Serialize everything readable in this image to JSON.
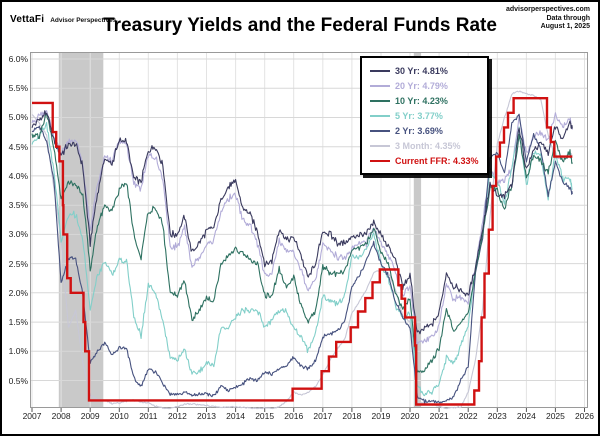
{
  "header": {
    "logo_primary": "VettaFi",
    "logo_secondary": "Advisor Perspectives",
    "source_lines": [
      "advisorperspectives.com",
      "Data through",
      "August 1, 2025"
    ]
  },
  "title": "Treasury Yields and the Federal Funds Rate",
  "chart_data": {
    "type": "line",
    "title": "Treasury Yields and the Federal Funds Rate",
    "xlabel": "",
    "ylabel": "",
    "grid": true,
    "legend_position": "top-right-inside",
    "xlim": [
      2006.93,
      2026.12
    ],
    "ylim": [
      0.03,
      6.12
    ],
    "x_ticks": [
      2007,
      2008,
      2009,
      2010,
      2011,
      2012,
      2013,
      2014,
      2015,
      2016,
      2017,
      2018,
      2019,
      2020,
      2021,
      2022,
      2023,
      2024,
      2025,
      2026
    ],
    "x_tick_labels": [
      "2007",
      "2008",
      "2009",
      "2010",
      "2011",
      "2012",
      "2013",
      "2014",
      "2015",
      "2016",
      "2017",
      "2018",
      "2019",
      "2020",
      "2021",
      "2022",
      "2023",
      "2024",
      "2025",
      "2026"
    ],
    "y_ticks": [
      0.5,
      1.0,
      1.5,
      2.0,
      2.5,
      3.0,
      3.5,
      4.0,
      4.5,
      5.0,
      5.5,
      6.0
    ],
    "y_tick_labels": [
      "0.5%",
      "1.0%",
      "1.5%",
      "2.0%",
      "2.5%",
      "3.0%",
      "3.5%",
      "4.0%",
      "4.5%",
      "5.0%",
      "5.5%",
      "6.0%"
    ],
    "recession_bands": [
      [
        2007.92,
        2009.45
      ],
      [
        2020.13,
        2020.38
      ]
    ],
    "colors": {
      "recession_band": "#c9c9c9",
      "grid_horizontal": "#d8d8d8",
      "grid_vertical": "#e3e3e3",
      "frame": "#9a9a9a"
    },
    "x": [
      2007.0,
      2007.25,
      2007.5,
      2007.75,
      2008.0,
      2008.25,
      2008.5,
      2008.75,
      2009.0,
      2009.25,
      2009.5,
      2009.75,
      2010.0,
      2010.25,
      2010.5,
      2010.75,
      2011.0,
      2011.25,
      2011.5,
      2011.75,
      2012.0,
      2012.25,
      2012.5,
      2012.75,
      2013.0,
      2013.25,
      2013.5,
      2013.75,
      2014.0,
      2014.25,
      2014.5,
      2014.75,
      2015.0,
      2015.25,
      2015.5,
      2015.75,
      2016.0,
      2016.25,
      2016.5,
      2016.75,
      2017.0,
      2017.25,
      2017.5,
      2017.75,
      2018.0,
      2018.25,
      2018.5,
      2018.75,
      2019.0,
      2019.25,
      2019.5,
      2019.75,
      2020.0,
      2020.25,
      2020.5,
      2020.75,
      2021.0,
      2021.25,
      2021.5,
      2021.75,
      2022.0,
      2022.25,
      2022.5,
      2022.75,
      2023.0,
      2023.25,
      2023.5,
      2023.75,
      2024.0,
      2024.25,
      2024.5,
      2024.75,
      2025.0,
      2025.25,
      2025.5,
      2025.58
    ],
    "series": [
      {
        "name": "30 Yr",
        "label": "30 Yr: 4.81%",
        "current_value": 4.81,
        "color": "#3a3a5e",
        "jitter": 0.09,
        "values": [
          4.85,
          4.95,
          5.1,
          4.6,
          4.35,
          4.55,
          4.55,
          4.15,
          2.85,
          3.7,
          4.3,
          4.2,
          4.6,
          4.6,
          3.95,
          3.9,
          4.45,
          4.5,
          4.2,
          3.0,
          3.0,
          3.3,
          2.7,
          2.85,
          3.05,
          3.1,
          3.6,
          3.8,
          3.9,
          3.45,
          3.35,
          3.05,
          2.5,
          2.55,
          3.1,
          2.9,
          2.95,
          2.65,
          2.25,
          2.5,
          3.05,
          3.0,
          2.85,
          2.85,
          2.95,
          3.0,
          3.0,
          3.2,
          3.0,
          2.8,
          2.55,
          2.1,
          2.3,
          1.3,
          1.4,
          1.45,
          1.65,
          2.35,
          2.1,
          2.05,
          1.95,
          2.45,
          3.1,
          3.85,
          3.65,
          3.65,
          3.85,
          4.85,
          4.1,
          4.45,
          4.55,
          4.4,
          4.85,
          4.6,
          4.95,
          4.81
        ]
      },
      {
        "name": "20 Yr",
        "label": "20 Yr: 4.79%",
        "current_value": 4.79,
        "color": "#b2acd8",
        "jitter": 0.09,
        "values": [
          4.9,
          5.05,
          5.1,
          4.65,
          4.4,
          4.6,
          4.6,
          4.2,
          3.05,
          3.85,
          4.35,
          4.25,
          4.6,
          4.55,
          3.85,
          3.8,
          4.35,
          4.3,
          3.95,
          2.8,
          2.8,
          3.1,
          2.45,
          2.6,
          2.8,
          2.9,
          3.4,
          3.6,
          3.7,
          3.25,
          3.15,
          2.85,
          2.3,
          2.35,
          2.9,
          2.7,
          2.7,
          2.4,
          2.0,
          2.25,
          2.8,
          2.75,
          2.6,
          2.6,
          2.75,
          2.85,
          2.85,
          3.1,
          2.85,
          2.65,
          2.35,
          1.95,
          2.1,
          1.15,
          1.2,
          1.25,
          1.45,
          2.15,
          1.9,
          1.9,
          1.85,
          2.45,
          3.25,
          4.1,
          3.9,
          3.95,
          4.1,
          5.05,
          4.35,
          4.7,
          4.7,
          4.6,
          5.05,
          4.85,
          5.0,
          4.79
        ]
      },
      {
        "name": "10 Yr",
        "label": "10 Yr: 4.23%",
        "current_value": 4.23,
        "color": "#2e7161",
        "jitter": 0.08,
        "values": [
          4.7,
          4.7,
          5.05,
          4.5,
          3.6,
          3.9,
          3.85,
          3.7,
          2.4,
          3.15,
          3.5,
          3.4,
          3.75,
          3.9,
          3.0,
          2.6,
          3.4,
          3.45,
          3.15,
          2.0,
          1.95,
          2.2,
          1.55,
          1.7,
          1.9,
          1.85,
          2.5,
          2.65,
          2.75,
          2.7,
          2.55,
          2.5,
          1.95,
          1.95,
          2.4,
          2.1,
          2.25,
          1.8,
          1.5,
          1.7,
          2.45,
          2.35,
          2.3,
          2.35,
          2.75,
          2.75,
          2.85,
          3.1,
          2.7,
          2.5,
          2.0,
          1.7,
          1.9,
          0.65,
          0.68,
          0.85,
          1.05,
          1.7,
          1.35,
          1.5,
          1.65,
          2.35,
          3.0,
          3.8,
          3.75,
          3.45,
          3.85,
          4.7,
          3.95,
          4.35,
          4.25,
          4.05,
          4.6,
          4.25,
          4.4,
          4.23
        ]
      },
      {
        "name": "5 Yr",
        "label": "5 Yr: 3.77%",
        "current_value": 3.77,
        "color": "#82cfc9",
        "jitter": 0.08,
        "values": [
          4.55,
          4.7,
          4.9,
          4.1,
          2.9,
          3.3,
          3.35,
          2.9,
          1.7,
          2.3,
          2.55,
          2.3,
          2.55,
          2.55,
          1.6,
          1.25,
          2.15,
          2.0,
          1.5,
          0.9,
          0.85,
          1.05,
          0.6,
          0.65,
          0.8,
          0.75,
          1.4,
          1.4,
          1.6,
          1.7,
          1.7,
          1.7,
          1.4,
          1.55,
          1.7,
          1.7,
          1.4,
          1.25,
          1.0,
          1.3,
          1.95,
          1.85,
          1.8,
          1.95,
          2.6,
          2.6,
          2.75,
          3.0,
          2.5,
          2.25,
          1.8,
          1.55,
          1.65,
          0.4,
          0.27,
          0.32,
          0.45,
          0.9,
          0.8,
          1.1,
          1.45,
          2.45,
          3.05,
          4.05,
          3.95,
          3.5,
          4.15,
          4.8,
          3.85,
          4.4,
          4.35,
          3.6,
          4.4,
          3.95,
          3.95,
          3.77
        ]
      },
      {
        "name": "2 Yr",
        "label": "2 Yr: 3.69%",
        "current_value": 3.69,
        "color": "#47527f",
        "jitter": 0.05,
        "values": [
          4.75,
          4.85,
          4.6,
          3.95,
          2.15,
          2.6,
          2.6,
          1.95,
          0.8,
          1.0,
          1.15,
          0.95,
          1.05,
          1.05,
          0.55,
          0.4,
          0.7,
          0.65,
          0.45,
          0.25,
          0.25,
          0.3,
          0.25,
          0.27,
          0.27,
          0.25,
          0.4,
          0.33,
          0.4,
          0.45,
          0.55,
          0.5,
          0.65,
          0.6,
          0.7,
          0.75,
          0.9,
          0.75,
          0.7,
          0.85,
          1.25,
          1.3,
          1.35,
          1.5,
          2.1,
          2.3,
          2.55,
          2.85,
          2.5,
          2.3,
          1.85,
          1.6,
          1.4,
          0.22,
          0.14,
          0.15,
          0.12,
          0.16,
          0.22,
          0.5,
          0.75,
          2.35,
          2.95,
          4.3,
          4.4,
          4.05,
          4.9,
          5.05,
          4.25,
          4.7,
          4.45,
          3.65,
          4.25,
          3.9,
          3.8,
          3.69
        ]
      },
      {
        "name": "3 Month",
        "label": "3 Month: 4.35%",
        "current_value": 4.35,
        "color": "#c7c7d6",
        "jitter": 0.02,
        "values": [
          5.05,
          4.9,
          4.7,
          3.8,
          2.9,
          1.4,
          1.7,
          0.8,
          0.25,
          0.18,
          0.16,
          0.1,
          0.12,
          0.15,
          0.16,
          0.13,
          0.12,
          0.06,
          0.03,
          0.02,
          0.06,
          0.09,
          0.1,
          0.08,
          0.08,
          0.05,
          0.04,
          0.05,
          0.05,
          0.04,
          0.03,
          0.02,
          0.03,
          0.02,
          0.05,
          0.15,
          0.3,
          0.25,
          0.3,
          0.4,
          0.6,
          0.85,
          1.05,
          1.2,
          1.65,
          1.85,
          2.05,
          2.35,
          2.4,
          2.35,
          2.05,
          1.6,
          1.5,
          0.12,
          0.11,
          0.09,
          0.06,
          0.02,
          0.04,
          0.05,
          0.3,
          0.85,
          1.75,
          3.3,
          4.55,
          5.0,
          5.4,
          5.45,
          5.4,
          5.38,
          5.3,
          4.7,
          4.3,
          4.3,
          4.4,
          4.35
        ]
      }
    ],
    "ffr": {
      "name": "Current FFR",
      "label": "Current FFR: 4.33%",
      "current_value": 4.33,
      "color": "#d01111",
      "points": [
        [
          2007.0,
          5.25
        ],
        [
          2007.71,
          4.75
        ],
        [
          2007.83,
          4.5
        ],
        [
          2007.94,
          4.25
        ],
        [
          2008.06,
          3.5
        ],
        [
          2008.08,
          3.0
        ],
        [
          2008.21,
          2.25
        ],
        [
          2008.33,
          2.0
        ],
        [
          2008.77,
          1.5
        ],
        [
          2008.83,
          1.0
        ],
        [
          2008.96,
          0.16
        ],
        [
          2015.96,
          0.36
        ],
        [
          2016.96,
          0.66
        ],
        [
          2017.21,
          0.91
        ],
        [
          2017.46,
          1.16
        ],
        [
          2017.96,
          1.41
        ],
        [
          2018.21,
          1.68
        ],
        [
          2018.46,
          1.91
        ],
        [
          2018.71,
          2.18
        ],
        [
          2018.96,
          2.4
        ],
        [
          2019.6,
          2.13
        ],
        [
          2019.71,
          1.9
        ],
        [
          2019.83,
          1.58
        ],
        [
          2020.17,
          1.1
        ],
        [
          2020.21,
          0.09
        ],
        [
          2022.21,
          0.33
        ],
        [
          2022.37,
          0.83
        ],
        [
          2022.46,
          1.58
        ],
        [
          2022.56,
          2.33
        ],
        [
          2022.71,
          3.08
        ],
        [
          2022.84,
          3.83
        ],
        [
          2022.96,
          4.33
        ],
        [
          2023.09,
          4.57
        ],
        [
          2023.23,
          4.83
        ],
        [
          2023.37,
          5.08
        ],
        [
          2023.56,
          5.33
        ],
        [
          2024.71,
          4.83
        ],
        [
          2024.84,
          4.58
        ],
        [
          2024.96,
          4.33
        ],
        [
          2025.58,
          4.33
        ]
      ]
    }
  }
}
